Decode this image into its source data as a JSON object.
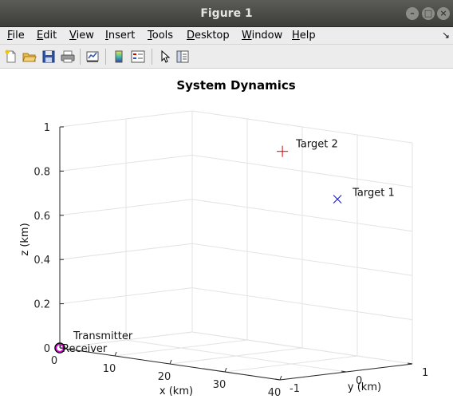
{
  "window": {
    "title": "Figure 1"
  },
  "menu": {
    "items": [
      {
        "mnemonic": "F",
        "rest": "ile"
      },
      {
        "mnemonic": "E",
        "rest": "dit"
      },
      {
        "mnemonic": "V",
        "rest": "iew"
      },
      {
        "mnemonic": "I",
        "rest": "nsert"
      },
      {
        "mnemonic": "T",
        "rest": "ools"
      },
      {
        "mnemonic": "D",
        "rest": "esktop"
      },
      {
        "mnemonic": "W",
        "rest": "indow"
      },
      {
        "mnemonic": "H",
        "rest": "elp"
      }
    ]
  },
  "toolbar": {
    "icons": [
      "new-figure-icon",
      "open-file-icon",
      "save-icon",
      "print-icon",
      "link-plot-icon",
      "colorbar-icon",
      "legend-icon",
      "pointer-icon",
      "property-inspector-icon"
    ]
  },
  "chart_data": {
    "type": "scatter",
    "title": "System Dynamics",
    "xlabel": "x (km)",
    "ylabel": "y (km)",
    "zlabel": "z (km)",
    "xlim": [
      0,
      40
    ],
    "ylim": [
      -1,
      1
    ],
    "zlim": [
      0,
      1
    ],
    "xticks": [
      "0",
      "10",
      "20",
      "30",
      "40"
    ],
    "yticks": [
      "-1",
      "0",
      "1"
    ],
    "zticks": [
      "0",
      "0.2",
      "0.4",
      "0.6",
      "0.8",
      "1"
    ],
    "grid": true,
    "points": [
      {
        "label": "Target 2",
        "x": 20,
        "y": 0.7,
        "z": 0.9,
        "marker": "+",
        "color": "#d40000"
      },
      {
        "label": "Target 1",
        "x": 30,
        "y": 0.7,
        "z": 0.72,
        "marker": "x",
        "color": "#0000cc"
      },
      {
        "label": "Transmitter",
        "x": 0,
        "y": -1,
        "z": 0,
        "marker": "o",
        "color": "#000000"
      },
      {
        "label": "Receiver",
        "x": 0,
        "y": -1,
        "z": 0,
        "marker": "o",
        "color": "#e000e0"
      }
    ]
  }
}
